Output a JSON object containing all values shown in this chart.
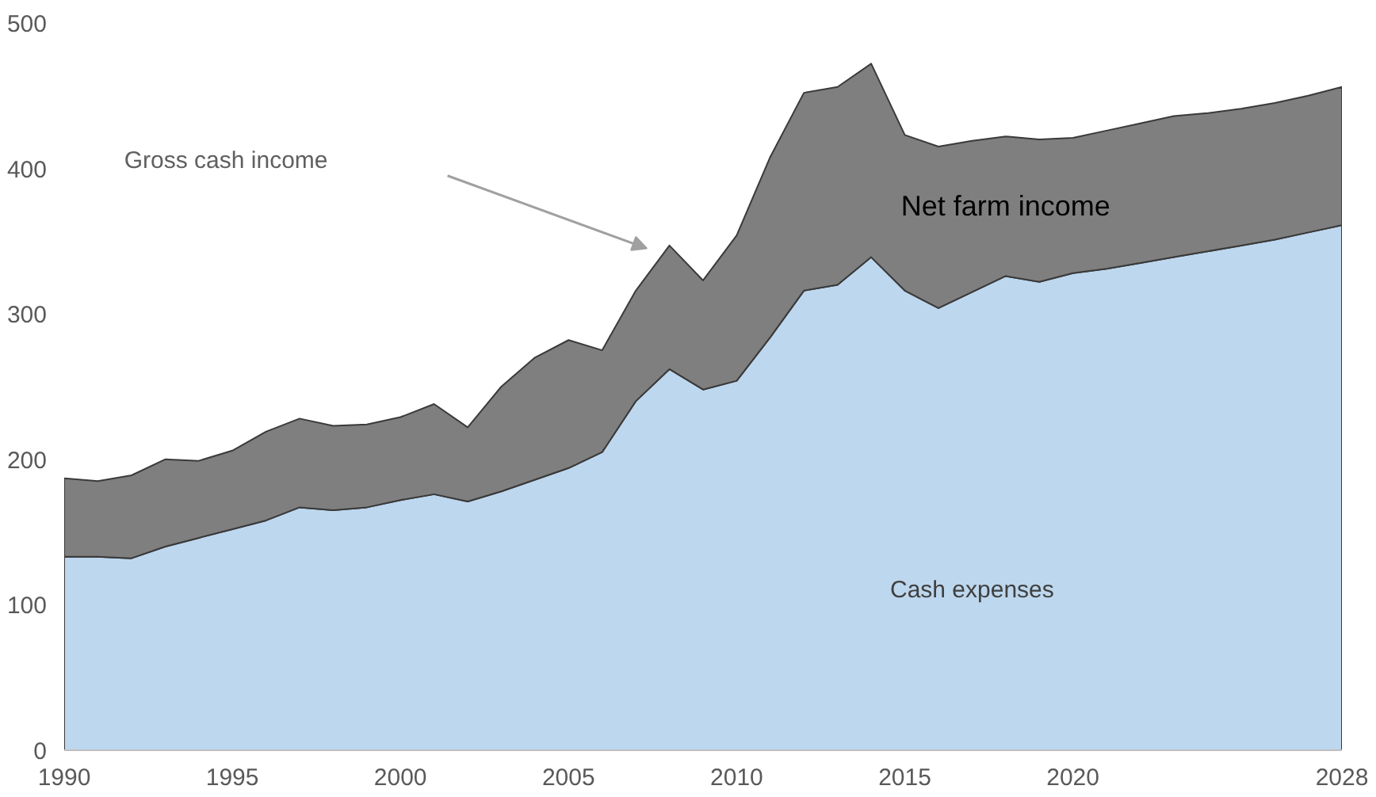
{
  "chart_data": {
    "type": "area",
    "stacked": true,
    "x": [
      1990,
      1991,
      1992,
      1993,
      1994,
      1995,
      1996,
      1997,
      1998,
      1999,
      2000,
      2001,
      2002,
      2003,
      2004,
      2005,
      2006,
      2007,
      2008,
      2009,
      2010,
      2011,
      2012,
      2013,
      2014,
      2015,
      2016,
      2017,
      2018,
      2019,
      2020,
      2021,
      2022,
      2023,
      2024,
      2025,
      2026,
      2027,
      2028
    ],
    "series": [
      {
        "name": "Cash expenses",
        "color": "#bdd7ee",
        "values": [
          133,
          133,
          132,
          140,
          146,
          152,
          158,
          167,
          165,
          167,
          172,
          176,
          171,
          178,
          186,
          194,
          205,
          240,
          262,
          248,
          254,
          284,
          316,
          320,
          339,
          316,
          304,
          315,
          326,
          322,
          328,
          331,
          335,
          339,
          343,
          347,
          351,
          356,
          361
        ]
      },
      {
        "name": "Net farm income",
        "color": "#7f7f7f",
        "values": [
          54,
          52,
          57,
          60,
          53,
          54,
          61,
          61,
          58,
          57,
          57,
          62,
          51,
          72,
          84,
          88,
          70,
          76,
          85,
          75,
          100,
          124,
          136,
          136,
          133,
          107,
          111,
          104,
          96,
          98,
          93,
          95,
          96,
          97,
          95,
          94,
          94,
          94,
          95
        ]
      }
    ],
    "xlim": [
      1990,
      2028
    ],
    "xticks": [
      1990,
      1995,
      2000,
      2005,
      2010,
      2015,
      2020,
      2028
    ],
    "ylim": [
      0,
      500
    ],
    "yticks": [
      0,
      100,
      200,
      300,
      400,
      500
    ],
    "grid": false,
    "annotations": [
      "Gross cash income"
    ]
  }
}
